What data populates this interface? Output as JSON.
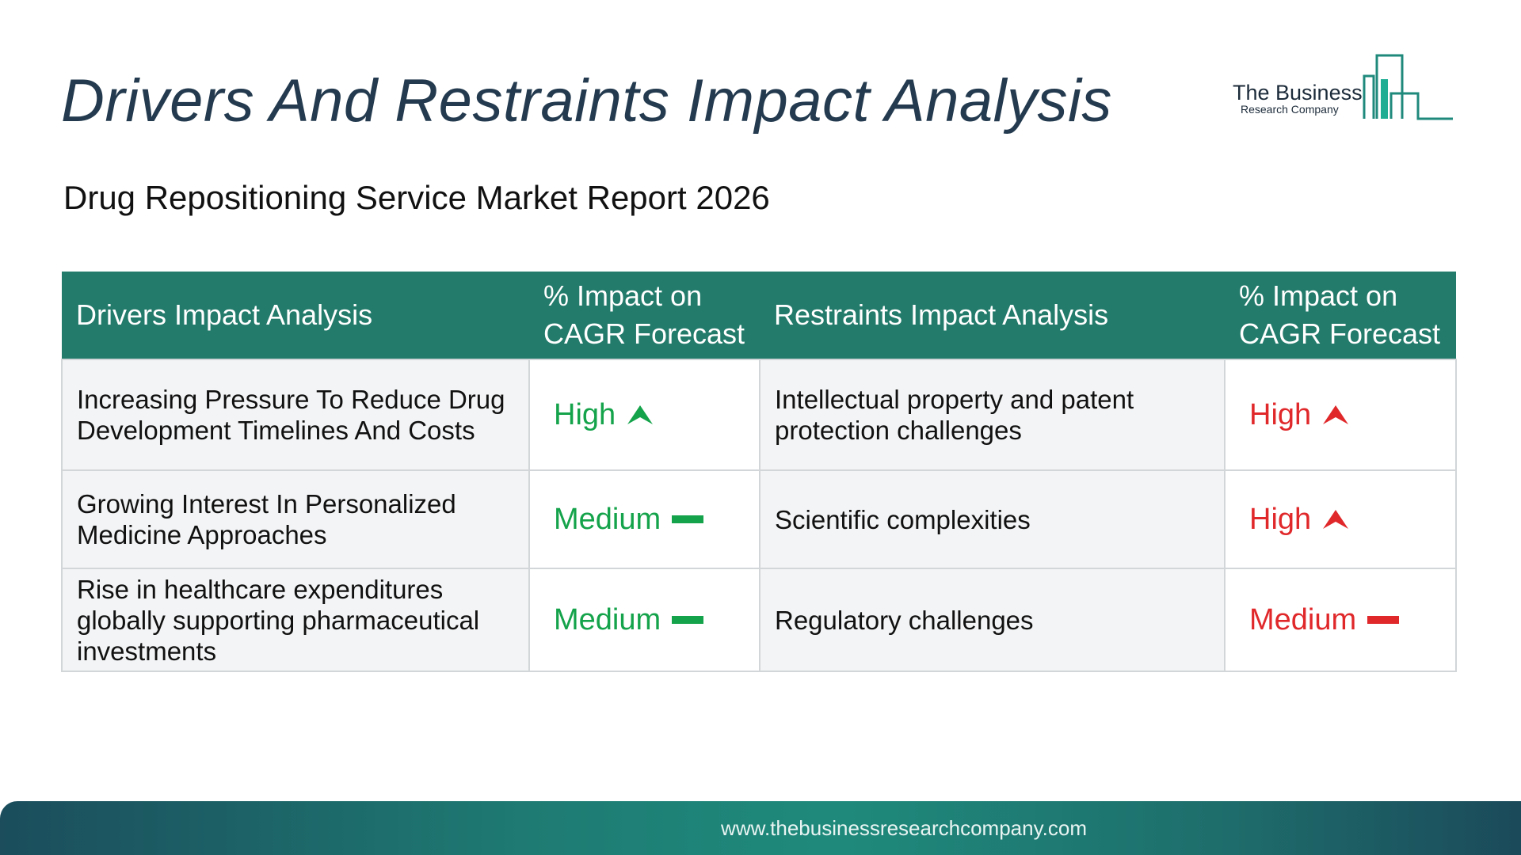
{
  "header": {
    "title": "Drivers And Restraints Impact Analysis",
    "subtitle": "Drug Repositioning Service Market Report 2026"
  },
  "logo": {
    "name": "The Business",
    "sub": "Research Company",
    "color": "#1f8a7c"
  },
  "table": {
    "headers": {
      "drivers": "Drivers Impact Analysis",
      "drivers_impact": "% Impact on CAGR Forecast",
      "restraints": "Restraints Impact Analysis",
      "restraints_impact": "% Impact on CAGR Forecast"
    },
    "rows": [
      {
        "driver": "Increasing Pressure To Reduce Drug Development Timelines And Costs",
        "driver_impact": "High",
        "driver_trend": "up-arrow-icon",
        "restraint": "Intellectual property and patent protection challenges",
        "restraint_impact": "High",
        "restraint_trend": "up-arrow-icon"
      },
      {
        "driver": "Growing Interest In Personalized Medicine Approaches",
        "driver_impact": "Medium",
        "driver_trend": "dash-icon",
        "restraint": "Scientific complexities",
        "restraint_impact": "High",
        "restraint_trend": "up-arrow-icon"
      },
      {
        "driver": "Rise in healthcare expenditures globally supporting pharmaceutical investments",
        "driver_impact": "Medium",
        "driver_trend": "dash-icon",
        "restraint": "Regulatory challenges",
        "restraint_impact": "Medium",
        "restraint_trend": "dash-icon"
      }
    ]
  },
  "colors": {
    "header_bg": "#237b6b",
    "driver_level": "#14a34a",
    "restraint_level": "#e0282b",
    "title": "#243b4f"
  },
  "footer": {
    "url": "www.thebusinessresearchcompany.com"
  }
}
